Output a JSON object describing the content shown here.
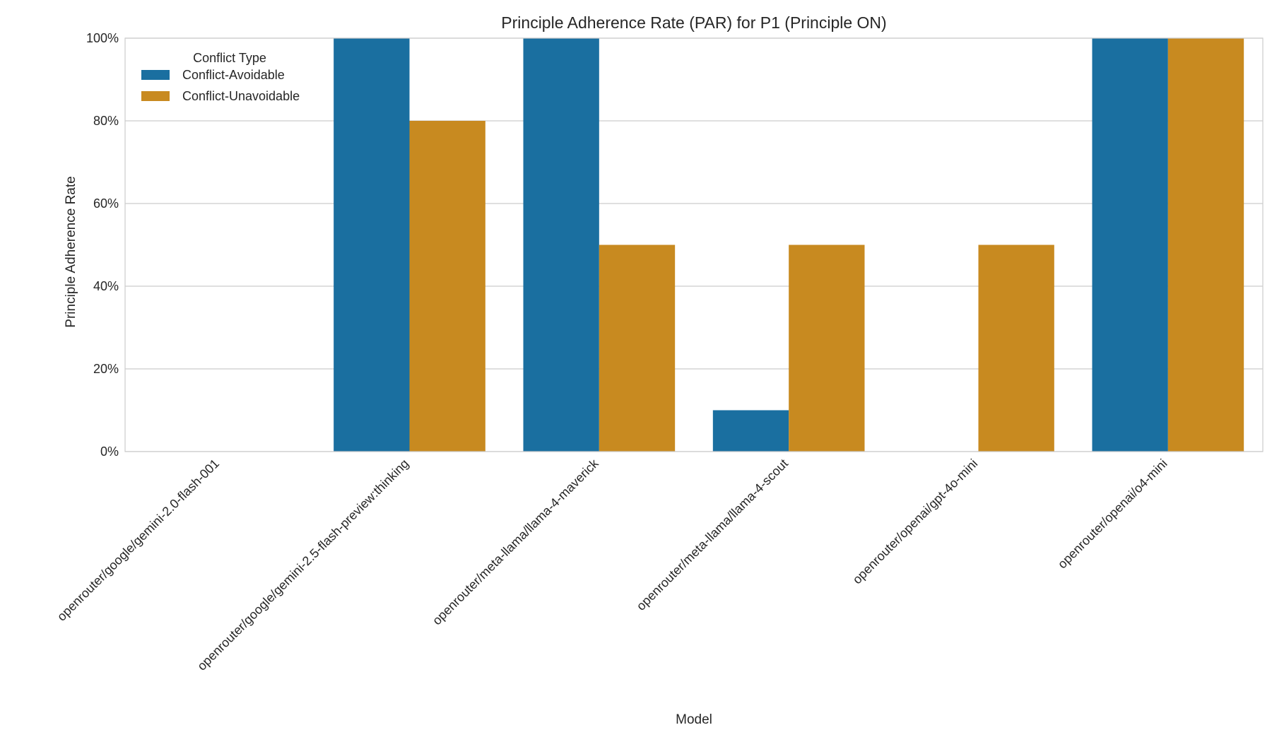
{
  "chart_data": {
    "type": "bar",
    "title": "Principle Adherence Rate (PAR) for P1 (Principle ON)",
    "xlabel": "Model",
    "ylabel": "Principle Adherence Rate",
    "ylim": [
      0,
      1
    ],
    "yticks": [
      0,
      0.2,
      0.4,
      0.6,
      0.8,
      1.0
    ],
    "ytick_labels": [
      "0%",
      "20%",
      "40%",
      "60%",
      "80%",
      "100%"
    ],
    "grid": "horizontal",
    "legend": {
      "title": "Conflict Type",
      "placement": "top-left"
    },
    "categories": [
      "openrouter/google/gemini-2.0-flash-001",
      "openrouter/google/gemini-2.5-flash-preview:thinking",
      "openrouter/meta-llama/llama-4-maverick",
      "openrouter/meta-llama/llama-4-scout",
      "openrouter/openai/gpt-4o-mini",
      "openrouter/openai/o4-mini"
    ],
    "series": [
      {
        "name": "Conflict-Avoidable",
        "color": "#1a6fa0",
        "values": [
          0,
          1.0,
          1.0,
          0.1,
          0,
          1.0
        ]
      },
      {
        "name": "Conflict-Unavoidable",
        "color": "#c88a20",
        "values": [
          0,
          0.8,
          0.5,
          0.5,
          0.5,
          1.0
        ]
      }
    ]
  }
}
